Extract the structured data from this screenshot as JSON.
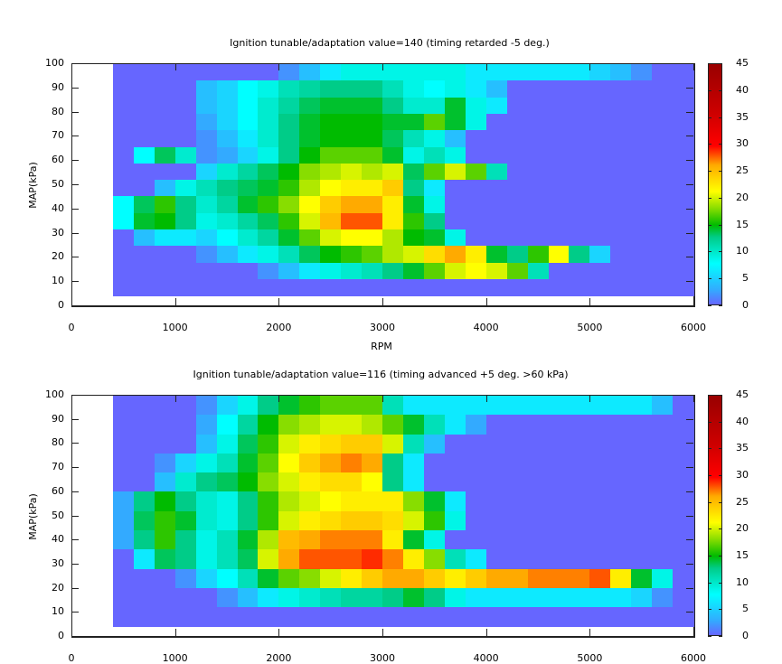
{
  "chart_data": [
    {
      "type": "heatmap",
      "title": "Ignition tunable/adaptation value=140 (timing retarded  -5 deg.)",
      "xlabel": "RPM",
      "ylabel": "MAP(kPa)",
      "xlim": [
        0,
        6000
      ],
      "ylim": [
        0,
        100
      ],
      "xticks": [
        "0",
        "1000",
        "2000",
        "3000",
        "4000",
        "5000",
        "6000"
      ],
      "yticks": [
        "0",
        "10",
        "20",
        "30",
        "40",
        "50",
        "60",
        "70",
        "80",
        "90",
        "100"
      ],
      "colorbar": {
        "range": [
          0,
          45
        ],
        "ticks": [
          "0",
          "5",
          "10",
          "15",
          "20",
          "25",
          "30",
          "35",
          "40",
          "45"
        ]
      },
      "x_start": 400,
      "x_step": 200,
      "y_start": 4,
      "y_step": 4,
      "grid_rows_top_to_bottom": [
        [
          0,
          0,
          0,
          0,
          0,
          0,
          0,
          0,
          2,
          4,
          6,
          8,
          8,
          8,
          8,
          8,
          8,
          6,
          6,
          6,
          6,
          6,
          6,
          5,
          4,
          2,
          0,
          0
        ],
        [
          0,
          0,
          0,
          0,
          4,
          5,
          7,
          8,
          10,
          11,
          12,
          12,
          12,
          10,
          8,
          7,
          8,
          6,
          4,
          0,
          0,
          0,
          0,
          0,
          0,
          0,
          0,
          0
        ],
        [
          0,
          0,
          0,
          0,
          4,
          5,
          7,
          9,
          11,
          13,
          14,
          14,
          14,
          12,
          9,
          9,
          14,
          8,
          6,
          0,
          0,
          0,
          0,
          0,
          0,
          0,
          0,
          0
        ],
        [
          0,
          0,
          0,
          0,
          3,
          5,
          7,
          9,
          12,
          14,
          15,
          15,
          15,
          14,
          14,
          17,
          14,
          8,
          0,
          0,
          0,
          0,
          0,
          0,
          0,
          0,
          0,
          0
        ],
        [
          0,
          0,
          0,
          0,
          2,
          4,
          6,
          9,
          12,
          14,
          15,
          15,
          15,
          13,
          10,
          8,
          4,
          0,
          0,
          0,
          0,
          0,
          0,
          0,
          0,
          0,
          0,
          0
        ],
        [
          0,
          7,
          13,
          9,
          2,
          3,
          5,
          8,
          12,
          15,
          17,
          17,
          17,
          14,
          8,
          10,
          8,
          0,
          0,
          0,
          0,
          0,
          0,
          0,
          0,
          0,
          0,
          0
        ],
        [
          0,
          0,
          0,
          0,
          5,
          9,
          11,
          13,
          15,
          18,
          19,
          20,
          19,
          20,
          13,
          17,
          20,
          17,
          10,
          0,
          0,
          0,
          0,
          0,
          0,
          0,
          0,
          0
        ],
        [
          0,
          0,
          4,
          8,
          10,
          12,
          13,
          14,
          16,
          19,
          21,
          22,
          22,
          24,
          12,
          6,
          0,
          0,
          0,
          0,
          0,
          0,
          0,
          0,
          0,
          0,
          0,
          0
        ],
        [
          7,
          13,
          16,
          12,
          9,
          11,
          14,
          16,
          18,
          21,
          24,
          26,
          26,
          22,
          14,
          8,
          0,
          0,
          0,
          0,
          0,
          0,
          0,
          0,
          0,
          0,
          0,
          0
        ],
        [
          7,
          14,
          15,
          12,
          8,
          9,
          11,
          13,
          16,
          20,
          25,
          28,
          28,
          22,
          16,
          12,
          0,
          0,
          0,
          0,
          0,
          0,
          0,
          0,
          0,
          0,
          0,
          0
        ],
        [
          0,
          4,
          6,
          6,
          5,
          7,
          9,
          11,
          14,
          17,
          20,
          21,
          21,
          19,
          15,
          14,
          8,
          0,
          0,
          0,
          0,
          0,
          0,
          0,
          0,
          0,
          0,
          0
        ],
        [
          0,
          0,
          0,
          0,
          2,
          4,
          6,
          8,
          10,
          13,
          15,
          16,
          17,
          19,
          20,
          23,
          26,
          22,
          14,
          12,
          16,
          21,
          12,
          5,
          0,
          0,
          0,
          0
        ],
        [
          0,
          0,
          0,
          0,
          0,
          0,
          0,
          2,
          4,
          6,
          8,
          9,
          10,
          12,
          14,
          17,
          20,
          21,
          20,
          17,
          10,
          0,
          0,
          0,
          0,
          0,
          0,
          0
        ],
        [
          0,
          0,
          0,
          0,
          0,
          0,
          0,
          0,
          0,
          0,
          0,
          0,
          0,
          0,
          0,
          0,
          0,
          0,
          0,
          0,
          0,
          0,
          0,
          0,
          0,
          0,
          0,
          0
        ]
      ]
    },
    {
      "type": "heatmap",
      "title": "Ignition tunable/adaptation value=116 (timing advanced  +5 deg. >60 kPa)",
      "xlabel": "",
      "ylabel": "MAP(kPa)",
      "xlim": [
        0,
        6000
      ],
      "ylim": [
        0,
        100
      ],
      "xticks": [
        "0",
        "1000",
        "2000",
        "3000",
        "4000",
        "5000",
        "6000"
      ],
      "yticks": [
        "0",
        "10",
        "20",
        "30",
        "40",
        "50",
        "60",
        "70",
        "80",
        "90",
        "100"
      ],
      "colorbar": {
        "range": [
          0,
          45
        ],
        "ticks": [
          "0",
          "5",
          "10",
          "15",
          "20",
          "25",
          "30",
          "35",
          "40",
          "45"
        ]
      },
      "x_start": 400,
      "x_step": 200,
      "y_start": 4,
      "y_step": 4,
      "grid_rows_top_to_bottom": [
        [
          0,
          0,
          0,
          0,
          2,
          5,
          8,
          12,
          14,
          16,
          17,
          17,
          17,
          10,
          6,
          6,
          6,
          6,
          6,
          6,
          6,
          6,
          6,
          6,
          6,
          6,
          4,
          0
        ],
        [
          0,
          0,
          0,
          0,
          3,
          7,
          11,
          15,
          18,
          19,
          20,
          20,
          19,
          17,
          14,
          10,
          6,
          3,
          0,
          0,
          0,
          0,
          0,
          0,
          0,
          0,
          0,
          0
        ],
        [
          0,
          0,
          0,
          0,
          4,
          8,
          13,
          16,
          20,
          22,
          23,
          24,
          24,
          20,
          10,
          4,
          0,
          0,
          0,
          0,
          0,
          0,
          0,
          0,
          0,
          0,
          0,
          0
        ],
        [
          0,
          0,
          2,
          5,
          8,
          10,
          14,
          17,
          21,
          24,
          26,
          27,
          26,
          12,
          6,
          0,
          0,
          0,
          0,
          0,
          0,
          0,
          0,
          0,
          0,
          0,
          0,
          0
        ],
        [
          0,
          0,
          4,
          9,
          12,
          13,
          15,
          18,
          20,
          22,
          23,
          23,
          21,
          12,
          6,
          0,
          0,
          0,
          0,
          0,
          0,
          0,
          0,
          0,
          0,
          0,
          0,
          0
        ],
        [
          3,
          12,
          15,
          12,
          9,
          8,
          12,
          16,
          19,
          20,
          21,
          22,
          22,
          22,
          18,
          14,
          6,
          0,
          0,
          0,
          0,
          0,
          0,
          0,
          0,
          0,
          0,
          0
        ],
        [
          3,
          13,
          16,
          14,
          9,
          8,
          12,
          16,
          20,
          22,
          23,
          24,
          24,
          23,
          20,
          16,
          8,
          0,
          0,
          0,
          0,
          0,
          0,
          0,
          0,
          0,
          0,
          0
        ],
        [
          3,
          12,
          16,
          12,
          8,
          10,
          14,
          19,
          25,
          26,
          27,
          27,
          27,
          22,
          14,
          8,
          0,
          0,
          0,
          0,
          0,
          0,
          0,
          0,
          0,
          0,
          0,
          0
        ],
        [
          0,
          6,
          13,
          12,
          8,
          10,
          13,
          20,
          26,
          28,
          28,
          28,
          29,
          27,
          22,
          18,
          10,
          6,
          0,
          0,
          0,
          0,
          0,
          0,
          0,
          0,
          0,
          0
        ],
        [
          0,
          0,
          0,
          2,
          5,
          7,
          10,
          14,
          17,
          18,
          20,
          22,
          24,
          26,
          26,
          24,
          22,
          24,
          26,
          26,
          27,
          27,
          27,
          28,
          22,
          14,
          8,
          0
        ],
        [
          0,
          0,
          0,
          0,
          0,
          2,
          4,
          6,
          8,
          9,
          10,
          11,
          11,
          12,
          14,
          12,
          8,
          6,
          6,
          6,
          6,
          6,
          6,
          6,
          6,
          5,
          2,
          0
        ],
        [
          0,
          0,
          0,
          0,
          0,
          0,
          0,
          0,
          0,
          0,
          0,
          0,
          0,
          0,
          0,
          0,
          0,
          0,
          0,
          0,
          0,
          0,
          0,
          0,
          0,
          0,
          0,
          0
        ]
      ]
    }
  ],
  "charts": {
    "top": {
      "title": "Ignition tunable/adaptation value=140 (timing retarded  -5 deg.)",
      "ylabel": "MAP(kPa)",
      "xlabel": "RPM"
    },
    "bottom": {
      "title": "Ignition tunable/adaptation value=116 (timing advanced  +5 deg. >60 kPa)",
      "ylabel": "MAP(kPa)"
    }
  }
}
